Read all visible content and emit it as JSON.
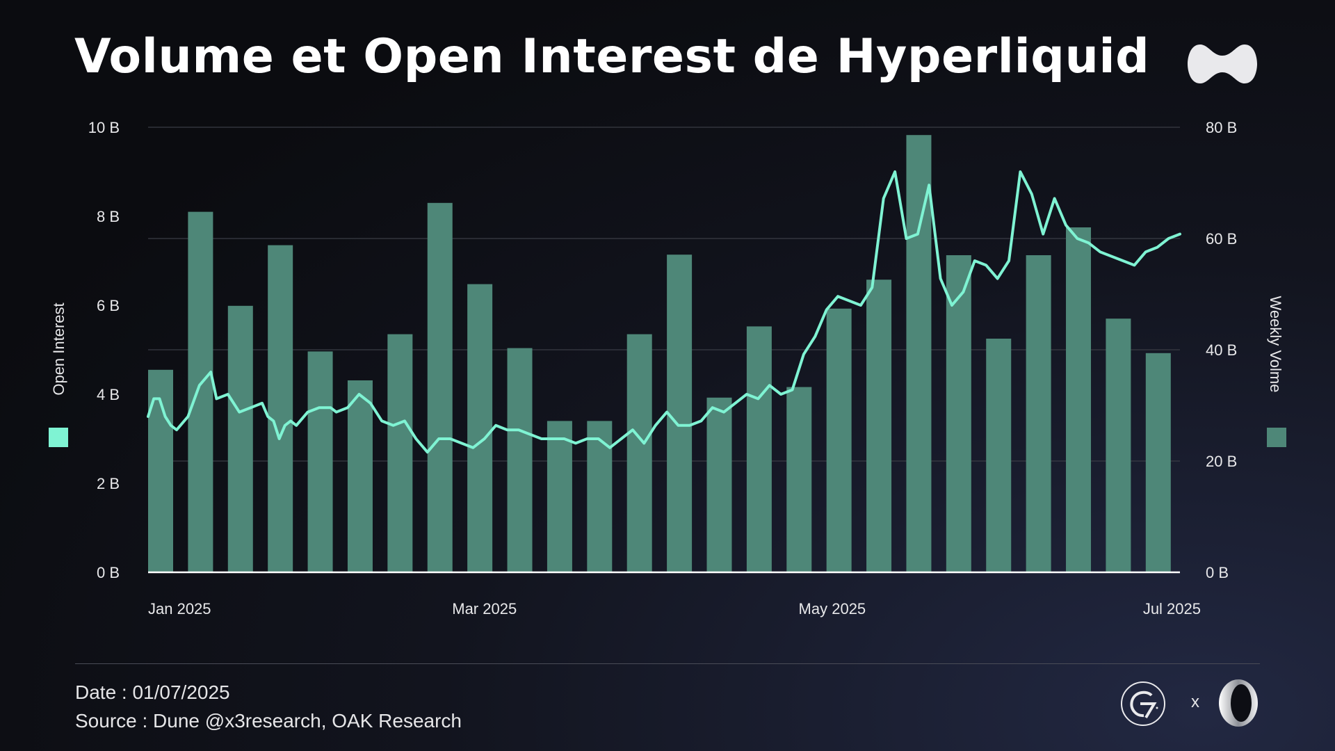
{
  "header": {
    "title": "Volume et Open Interest de Hyperliquid"
  },
  "colors": {
    "bars": "#4e8778",
    "line": "#7ff3d3",
    "grid": "#3a3c45",
    "baseline": "#ffffff"
  },
  "icons": {
    "brand": "hyperliquid-logo",
    "partner_1": "g7-logo",
    "partner_2": "oak-research-logo"
  },
  "chart_data": {
    "type": "bar+line",
    "title": "Volume et Open Interest de Hyperliquid",
    "left_axis": {
      "label": "Open Interest",
      "ticks": [
        "10 B",
        "8 B",
        "6 B",
        "4 B",
        "2 B",
        "0 B"
      ],
      "range": [
        0,
        10
      ]
    },
    "right_axis": {
      "label": "Weekly Volme",
      "ticks": [
        "80 B",
        "60 B",
        "40 B",
        "20 B",
        "0 B"
      ],
      "range": [
        0,
        80
      ]
    },
    "x_axis": {
      "tick_labels": [
        "Jan 2025",
        "Mar 2025",
        "May 2025",
        "Jul 2025"
      ],
      "tick_dates": [
        "2025-01-01",
        "2025-03-01",
        "2025-05-01",
        "2025-07-01"
      ],
      "range": [
        "2025-01-01",
        "2025-07-01"
      ]
    },
    "grid": true,
    "legend": {
      "left": "square-swatch-open-interest",
      "right": "square-swatch-weekly-volume"
    },
    "bar_series": {
      "name": "Weekly Volme",
      "unit": "B",
      "weeks": [
        "2025-01-01",
        "2025-01-08",
        "2025-01-15",
        "2025-01-22",
        "2025-01-29",
        "2025-02-05",
        "2025-02-12",
        "2025-02-19",
        "2025-02-26",
        "2025-03-05",
        "2025-03-12",
        "2025-03-19",
        "2025-03-26",
        "2025-04-02",
        "2025-04-09",
        "2025-04-16",
        "2025-04-23",
        "2025-04-30",
        "2025-05-07",
        "2025-05-14",
        "2025-05-21",
        "2025-05-28",
        "2025-06-04",
        "2025-06-11",
        "2025-06-18",
        "2025-06-25"
      ],
      "values": [
        36.4,
        64.8,
        47.9,
        58.8,
        39.7,
        34.5,
        42.8,
        66.4,
        51.8,
        40.3,
        27.2,
        27.2,
        42.8,
        57.1,
        31.4,
        44.2,
        33.3,
        47.4,
        52.6,
        78.6,
        57.0,
        42.0,
        57.0,
        62.0,
        45.6,
        39.4
      ]
    },
    "line_series": {
      "name": "Open Interest",
      "unit": "B",
      "x": [
        "2025-01-01",
        "2025-01-02",
        "2025-01-03",
        "2025-01-04",
        "2025-01-05",
        "2025-01-06",
        "2025-01-08",
        "2025-01-10",
        "2025-01-12",
        "2025-01-13",
        "2025-01-15",
        "2025-01-17",
        "2025-01-19",
        "2025-01-21",
        "2025-01-22",
        "2025-01-23",
        "2025-01-24",
        "2025-01-25",
        "2025-01-26",
        "2025-01-27",
        "2025-01-29",
        "2025-01-31",
        "2025-02-02",
        "2025-02-03",
        "2025-02-05",
        "2025-02-07",
        "2025-02-09",
        "2025-02-11",
        "2025-02-13",
        "2025-02-15",
        "2025-02-17",
        "2025-02-19",
        "2025-02-21",
        "2025-02-23",
        "2025-02-25",
        "2025-02-27",
        "2025-03-01",
        "2025-03-03",
        "2025-03-05",
        "2025-03-07",
        "2025-03-09",
        "2025-03-11",
        "2025-03-13",
        "2025-03-15",
        "2025-03-17",
        "2025-03-19",
        "2025-03-21",
        "2025-03-23",
        "2025-03-25",
        "2025-03-27",
        "2025-03-29",
        "2025-03-31",
        "2025-04-02",
        "2025-04-04",
        "2025-04-06",
        "2025-04-08",
        "2025-04-10",
        "2025-04-12",
        "2025-04-14",
        "2025-04-16",
        "2025-04-18",
        "2025-04-20",
        "2025-04-22",
        "2025-04-24",
        "2025-04-26",
        "2025-04-28",
        "2025-04-30",
        "2025-05-02",
        "2025-05-04",
        "2025-05-06",
        "2025-05-08",
        "2025-05-10",
        "2025-05-12",
        "2025-05-14",
        "2025-05-16",
        "2025-05-18",
        "2025-05-20",
        "2025-05-22",
        "2025-05-24",
        "2025-05-26",
        "2025-05-28",
        "2025-05-30",
        "2025-06-01",
        "2025-06-03",
        "2025-06-05",
        "2025-06-07",
        "2025-06-09",
        "2025-06-11",
        "2025-06-13",
        "2025-06-15",
        "2025-06-17",
        "2025-06-19",
        "2025-06-21",
        "2025-06-23",
        "2025-06-25",
        "2025-06-27",
        "2025-06-29",
        "2025-07-01"
      ],
      "values": [
        3.5,
        3.9,
        3.9,
        3.5,
        3.3,
        3.2,
        3.5,
        4.2,
        4.5,
        3.9,
        4.0,
        3.6,
        3.7,
        3.8,
        3.5,
        3.4,
        3.0,
        3.3,
        3.4,
        3.3,
        3.6,
        3.7,
        3.7,
        3.6,
        3.7,
        4.0,
        3.8,
        3.4,
        3.3,
        3.4,
        3.0,
        2.7,
        3.0,
        3.0,
        2.9,
        2.8,
        3.0,
        3.3,
        3.2,
        3.2,
        3.1,
        3.0,
        3.0,
        3.0,
        2.9,
        3.0,
        3.0,
        2.8,
        3.0,
        3.2,
        2.9,
        3.3,
        3.6,
        3.3,
        3.3,
        3.4,
        3.7,
        3.6,
        3.8,
        4.0,
        3.9,
        4.2,
        4.0,
        4.1,
        4.9,
        5.3,
        5.9,
        6.2,
        6.1,
        6.0,
        6.4,
        8.4,
        9.0,
        7.5,
        7.6,
        8.7,
        6.6,
        6.0,
        6.3,
        7.0,
        6.9,
        6.6,
        7.0,
        9.0,
        8.5,
        7.6,
        8.4,
        7.8,
        7.5,
        7.4,
        7.2,
        7.1,
        7.0,
        6.9,
        7.2,
        7.3,
        7.5,
        7.6
      ]
    }
  },
  "footer": {
    "date": "Date : 01/07/2025",
    "source": "Source : Dune @x3research, OAK Research",
    "separator": "x"
  }
}
